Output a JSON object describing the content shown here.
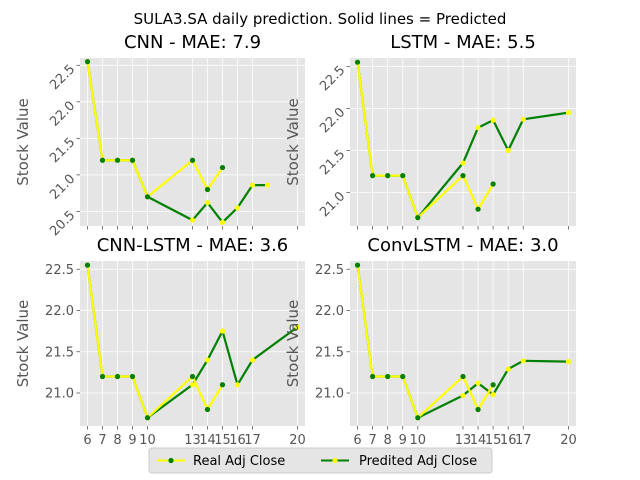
{
  "figure": {
    "suptitle": "SULA3.SA daily prediction. Solid lines = Predicted",
    "legend": {
      "real_label": "Real Adj Close",
      "pred_label": "Predited Adj Close",
      "placement": "bottom-center"
    },
    "colors": {
      "background": "#e5e5e5",
      "grid": "#ffffff",
      "tick_text": "#555555",
      "real_line": "#ffff00",
      "real_marker": "#008000",
      "pred_line": "#008000",
      "pred_marker": "#ffff00"
    }
  },
  "chart_data": [
    {
      "type": "line",
      "title": "CNN - MAE: 7.9",
      "xlabel": "",
      "ylabel": "Stock Value",
      "x_tick_labels_visible": false,
      "ylim": [
        20.3,
        22.6
      ],
      "yticks": [
        20.5,
        21.0,
        21.5,
        22.0,
        22.5
      ],
      "ytick_labels": [
        "20.5",
        "21.0",
        "21.5",
        "22.0",
        "22.5"
      ],
      "ytick_rotation": 45,
      "grid": true,
      "series": [
        {
          "name": "Real Adj Close",
          "x": [
            6,
            7,
            8,
            9,
            10,
            13,
            14,
            15
          ],
          "y": [
            22.55,
            21.2,
            21.2,
            21.2,
            20.7,
            21.2,
            20.8,
            21.1
          ]
        },
        {
          "name": "Predited Adj Close",
          "x": [
            6,
            7,
            8,
            9,
            10,
            13,
            14,
            15,
            16,
            17,
            18
          ],
          "y": [
            22.55,
            21.2,
            21.2,
            21.2,
            20.7,
            20.38,
            20.62,
            20.35,
            20.55,
            20.86,
            20.86
          ]
        }
      ]
    },
    {
      "type": "line",
      "title": "LSTM - MAE: 5.5",
      "xlabel": "",
      "ylabel": "Stock Value",
      "x_tick_labels_visible": false,
      "ylim": [
        20.6,
        22.6
      ],
      "yticks": [
        21.0,
        21.5,
        22.0,
        22.5
      ],
      "ytick_labels": [
        "21.0",
        "21.5",
        "22.0",
        "22.5"
      ],
      "ytick_rotation": 45,
      "grid": true,
      "series": [
        {
          "name": "Real Adj Close",
          "x": [
            6,
            7,
            8,
            9,
            10,
            13,
            14,
            15
          ],
          "y": [
            22.55,
            21.2,
            21.2,
            21.2,
            20.7,
            21.2,
            20.8,
            21.1
          ]
        },
        {
          "name": "Predited Adj Close",
          "x": [
            6,
            7,
            8,
            9,
            10,
            13,
            14,
            15,
            16,
            17,
            20
          ],
          "y": [
            22.55,
            21.2,
            21.2,
            21.2,
            20.7,
            21.35,
            21.77,
            21.86,
            21.5,
            21.87,
            21.95
          ]
        }
      ]
    },
    {
      "type": "line",
      "title": "CNN-LSTM - MAE: 3.6",
      "xlabel": "",
      "ylabel": "Stock Value",
      "x_tick_labels_visible": true,
      "xticks": [
        6,
        7,
        8,
        9,
        10,
        13,
        14,
        15,
        16,
        17,
        20
      ],
      "xtick_labels": [
        "6",
        "7",
        "8",
        "9",
        "10",
        "13",
        "14",
        "15",
        "16",
        "17",
        "20"
      ],
      "ylim": [
        20.6,
        22.6
      ],
      "yticks": [
        21.0,
        21.5,
        22.0,
        22.5
      ],
      "ytick_labels": [
        "21.0",
        "21.5",
        "22.0",
        "22.5"
      ],
      "ytick_rotation": 0,
      "grid": true,
      "series": [
        {
          "name": "Real Adj Close",
          "x": [
            6,
            7,
            8,
            9,
            10,
            13,
            14,
            15
          ],
          "y": [
            22.55,
            21.2,
            21.2,
            21.2,
            20.7,
            21.2,
            20.8,
            21.1
          ]
        },
        {
          "name": "Predited Adj Close",
          "x": [
            6,
            7,
            8,
            9,
            10,
            13,
            14,
            15,
            16,
            17,
            20
          ],
          "y": [
            22.55,
            21.2,
            21.2,
            21.2,
            20.7,
            21.1,
            21.4,
            21.75,
            21.1,
            21.4,
            21.8
          ]
        }
      ]
    },
    {
      "type": "line",
      "title": "ConvLSTM - MAE: 3.0",
      "xlabel": "",
      "ylabel": "Stock Value",
      "x_tick_labels_visible": true,
      "xticks": [
        6,
        7,
        8,
        9,
        10,
        13,
        14,
        15,
        16,
        17,
        20
      ],
      "xtick_labels": [
        "6",
        "7",
        "8",
        "9",
        "10",
        "13",
        "14",
        "15",
        "16",
        "17",
        "20"
      ],
      "ylim": [
        20.6,
        22.6
      ],
      "yticks": [
        21.0,
        21.5,
        22.0,
        22.5
      ],
      "ytick_labels": [
        "21.0",
        "21.5",
        "22.0",
        "22.5"
      ],
      "ytick_rotation": 0,
      "grid": true,
      "series": [
        {
          "name": "Real Adj Close",
          "x": [
            6,
            7,
            8,
            9,
            10,
            13,
            14,
            15
          ],
          "y": [
            22.55,
            21.2,
            21.2,
            21.2,
            20.7,
            21.2,
            20.8,
            21.1
          ]
        },
        {
          "name": "Predited Adj Close",
          "x": [
            6,
            7,
            8,
            9,
            10,
            13,
            14,
            15,
            16,
            17,
            20
          ],
          "y": [
            22.55,
            21.2,
            21.2,
            21.2,
            20.7,
            20.97,
            21.12,
            20.98,
            21.29,
            21.39,
            21.38
          ]
        }
      ]
    }
  ]
}
